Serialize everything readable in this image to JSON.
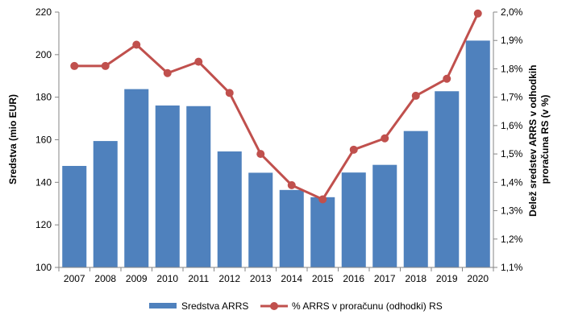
{
  "chart_data": {
    "type": "bar+line",
    "categories": [
      "2007",
      "2008",
      "2009",
      "2010",
      "2011",
      "2012",
      "2013",
      "2014",
      "2015",
      "2016",
      "2017",
      "2018",
      "2019",
      "2020"
    ],
    "series": [
      {
        "name": "Sredstva ARRS",
        "type": "bar",
        "axis": "left",
        "color": "#4f81bd",
        "values": [
          147.7,
          159.4,
          183.8,
          176.1,
          175.8,
          154.5,
          144.5,
          136.4,
          133.0,
          144.6,
          148.2,
          164.1,
          182.8,
          206.6
        ]
      },
      {
        "name": "% ARRS v proračunu (odhodki) RS",
        "type": "line",
        "axis": "right",
        "color": "#c0504d",
        "values": [
          1.81,
          1.81,
          1.885,
          1.785,
          1.825,
          1.715,
          1.5,
          1.39,
          1.34,
          1.515,
          1.555,
          1.705,
          1.765,
          1.995
        ]
      }
    ],
    "ylabel": "Sredstva (mio EUR)",
    "ylim": [
      100,
      220
    ],
    "yticks": [
      "100",
      "120",
      "140",
      "160",
      "180",
      "200",
      "220"
    ],
    "y2label_lines": [
      "Delež sredstev ARRS v odhodkih",
      "proračuna RS (v %)"
    ],
    "y2lim": [
      1.1,
      2.0
    ],
    "y2ticks": [
      "1,1%",
      "1,2%",
      "1,3%",
      "1,4%",
      "1,5%",
      "1,6%",
      "1,7%",
      "1,8%",
      "1,9%",
      "2,0%"
    ],
    "legend_position": "bottom",
    "grid": false
  }
}
